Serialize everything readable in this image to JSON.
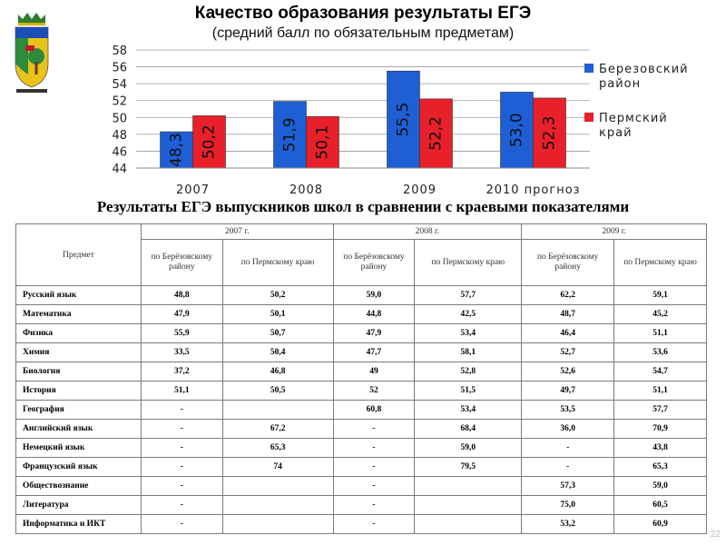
{
  "header": {
    "title": "Качество образования результаты ЕГЭ",
    "subtitle": "(средний балл по обязательным предметам)"
  },
  "chart_data": {
    "type": "bar",
    "title": "Качество образования результаты ЕГЭ",
    "subtitle": "(средний балл по обязательным предметам)",
    "categories": [
      "2007",
      "2008",
      "2009",
      "2010 прогноз"
    ],
    "series": [
      {
        "name": "Березовский район",
        "values": [
          48.3,
          51.9,
          55.5,
          53.0
        ],
        "labels": [
          "48,3",
          "51,9",
          "55,5",
          "53,0"
        ],
        "color": "#1f5fd6"
      },
      {
        "name": "Пермский край",
        "values": [
          50.2,
          50.1,
          52.2,
          52.3
        ],
        "labels": [
          "50,2",
          "50,1",
          "52,2",
          "52,3"
        ],
        "color": "#e8202a"
      }
    ],
    "legend_lines": [
      [
        "Березовский",
        "район"
      ],
      [
        "Пермский",
        "край"
      ]
    ],
    "yticks": [
      "44",
      "46",
      "48",
      "50",
      "52",
      "54",
      "56",
      "58"
    ],
    "ylim": [
      44,
      58
    ],
    "grid": true,
    "legend_position": "right"
  },
  "table": {
    "title": "Результаты ЕГЭ выпускников школ в сравнении с краевыми показателями",
    "subject_header": "Предмет",
    "years": [
      "2007 г.",
      "2008 г.",
      "2009 г."
    ],
    "sub_headers": [
      "по Берёзовскому району",
      "по Пермскому краю"
    ],
    "rows": [
      {
        "subject": "Русский язык",
        "values": [
          "48,8",
          "50,2",
          "59,0",
          "57,7",
          "62,2",
          "59,1"
        ]
      },
      {
        "subject": "Математика",
        "values": [
          "47,9",
          "50,1",
          "44,8",
          "42,5",
          "48,7",
          "45,2"
        ]
      },
      {
        "subject": "Физика",
        "values": [
          "55,9",
          "50,7",
          "47,9",
          "53,4",
          "46,4",
          "51,1"
        ]
      },
      {
        "subject": "Химия",
        "values": [
          "33,5",
          "50,4",
          "47,7",
          "58,1",
          "52,7",
          "53,6"
        ]
      },
      {
        "subject": "Биология",
        "values": [
          "37,2",
          "46,8",
          "49",
          "52,8",
          "52,6",
          "54,7"
        ]
      },
      {
        "subject": "История",
        "values": [
          "51,1",
          "50,5",
          "52",
          "51,5",
          "49,7",
          "51,1"
        ]
      },
      {
        "subject": "География",
        "values": [
          "-",
          "",
          "60,8",
          "53,4",
          "53,5",
          "57,7"
        ]
      },
      {
        "subject": "Английский язык",
        "values": [
          "-",
          "67,2",
          "-",
          "68,4",
          "36,0",
          "70,9"
        ]
      },
      {
        "subject": "Немецкий язык",
        "values": [
          "-",
          "65,3",
          "-",
          "59,0",
          "-",
          "43,8"
        ]
      },
      {
        "subject": "Французский язык",
        "values": [
          "-",
          "74",
          "-",
          "79,5",
          "-",
          "65,3"
        ]
      },
      {
        "subject": "Обществознание",
        "values": [
          "-",
          "",
          "-",
          "",
          "57,3",
          "59,0"
        ]
      },
      {
        "subject": "Литература",
        "values": [
          "-",
          "",
          "-",
          "",
          "75,0",
          "60,5"
        ]
      },
      {
        "subject": "Информатика и ИКТ",
        "values": [
          "-",
          "",
          "-",
          "",
          "53,2",
          "60,9"
        ]
      }
    ]
  },
  "page_number": "22"
}
